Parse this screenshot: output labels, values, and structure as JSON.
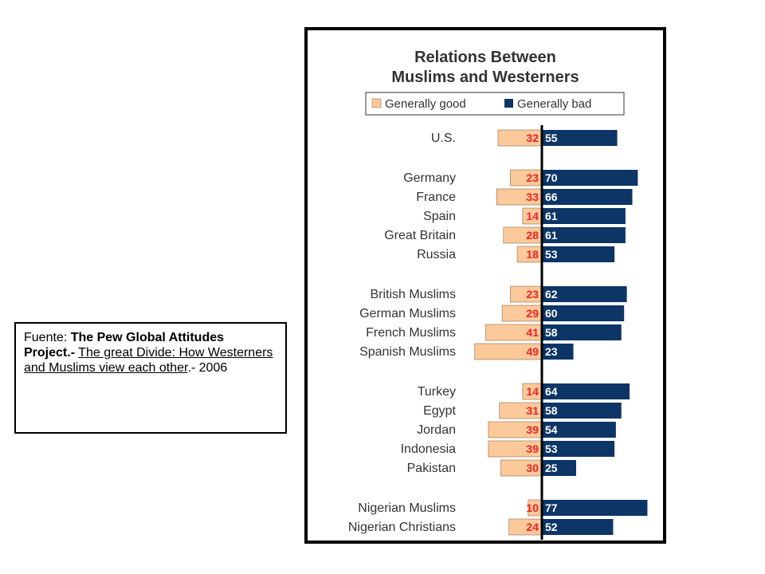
{
  "source": {
    "prefix": "Fuente: ",
    "org": "The Pew Global Attitudes Project.-",
    "title": "The great Divide: How Westerners and Muslims view each other",
    "suffix": ".- 2006"
  },
  "chart_data": {
    "type": "bar",
    "orientation": "horizontal-diverging",
    "title_lines": [
      "Relations Between",
      "Muslims and Westerners"
    ],
    "legend_position": "top",
    "categories": [
      "U.S.",
      "Germany",
      "France",
      "Spain",
      "Great Britain",
      "Russia",
      "British Muslims",
      "German Muslims",
      "French Muslims",
      "Spanish Muslims",
      "Turkey",
      "Egypt",
      "Jordan",
      "Indonesia",
      "Pakistan",
      "Nigerian Muslims",
      "Nigerian Christians"
    ],
    "groups": [
      [
        0
      ],
      [
        1,
        2,
        3,
        4,
        5
      ],
      [
        6,
        7,
        8,
        9
      ],
      [
        10,
        11,
        12,
        13,
        14
      ],
      [
        15,
        16
      ]
    ],
    "series": [
      {
        "name": "Generally good",
        "color": "#fcc99a",
        "label_color": "#ee2222",
        "values": [
          32,
          23,
          33,
          14,
          28,
          18,
          23,
          29,
          41,
          49,
          14,
          31,
          39,
          39,
          30,
          10,
          24
        ]
      },
      {
        "name": "Generally bad",
        "color": "#0d3566",
        "label_color": "#ffffff",
        "values": [
          55,
          70,
          66,
          61,
          61,
          53,
          62,
          60,
          58,
          23,
          64,
          58,
          54,
          53,
          25,
          77,
          52
        ]
      }
    ],
    "axis_line_color": "#000000",
    "grid": false
  }
}
